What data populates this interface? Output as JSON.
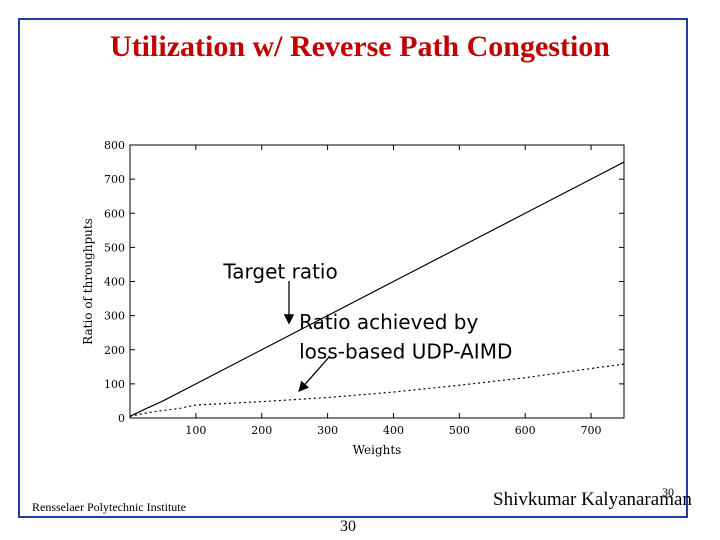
{
  "slide": {
    "title": "Utilization w/ Reverse Path Congestion",
    "footer_left": "Rensselaer Polytechnic Institute",
    "footer_right": "Shivkumar Kalyanaraman",
    "slide_number_small": "30",
    "slide_number": "30"
  },
  "colors": {
    "title": "#c00000",
    "frame": "#1f3f9a"
  },
  "chart_data": {
    "type": "line",
    "xlabel": "Weights",
    "ylabel": "Ratio of throughputs",
    "xlim": [
      0,
      750
    ],
    "ylim": [
      0,
      800
    ],
    "xticks": [
      100,
      200,
      300,
      400,
      500,
      600,
      700
    ],
    "yticks": [
      0,
      100,
      200,
      300,
      400,
      500,
      600,
      700,
      800
    ],
    "grid": false,
    "series": [
      {
        "style": "solid",
        "x": [
          0,
          25,
          50,
          100,
          200,
          300,
          400,
          500,
          600,
          700,
          750
        ],
        "y": [
          5,
          28,
          50,
          100,
          200,
          300,
          400,
          500,
          600,
          700,
          750
        ]
      },
      {
        "style": "dotted",
        "x": [
          0,
          25,
          50,
          75,
          100,
          200,
          300,
          400,
          500,
          600,
          700,
          750
        ],
        "y": [
          5,
          15,
          22,
          28,
          38,
          48,
          60,
          76,
          96,
          118,
          145,
          158
        ]
      }
    ],
    "annotations": [
      {
        "text": "Target ratio",
        "x": 245,
        "y": 430
      },
      {
        "text": "Ratio achieved by",
        "x": 360,
        "y": 282
      },
      {
        "text": "loss-based UDP-AIMD",
        "x": 360,
        "y": 195
      }
    ]
  }
}
